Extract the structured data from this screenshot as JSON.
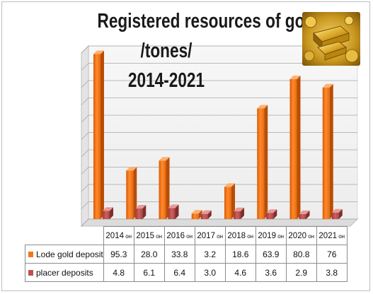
{
  "title_lines": [
    "Registered resources of gold",
    "/tones/",
    "2014-2021"
  ],
  "chart_data": {
    "type": "bar",
    "title": "Registered resources of gold /tones/ 2014-2021",
    "categories": [
      "2014",
      "2015",
      "2016",
      "2017",
      "2018",
      "2019",
      "2020",
      "2021"
    ],
    "category_suffix": "он",
    "series": [
      {
        "name": "Lode gold deposit",
        "values": [
          95.3,
          28.0,
          33.8,
          3.2,
          18.6,
          63.9,
          80.8,
          76
        ],
        "labels": [
          "95.3",
          "28.0",
          "33.8",
          "3.2",
          "18.6",
          "63.9",
          "80.8",
          "76"
        ],
        "color": "#f07818"
      },
      {
        "name": "placer deposits",
        "values": [
          4.8,
          6.1,
          6.4,
          3.0,
          4.6,
          3.6,
          2.9,
          3.8
        ],
        "labels": [
          "4.8",
          "6.1",
          "6.4",
          "3.0",
          "4.6",
          "3.6",
          "2.9",
          "3.8"
        ],
        "color": "#c0504d"
      }
    ],
    "ylim": [
      0,
      100
    ],
    "grid": true,
    "legend": "data-table"
  },
  "image": {
    "icon": "gold-bars-image"
  }
}
